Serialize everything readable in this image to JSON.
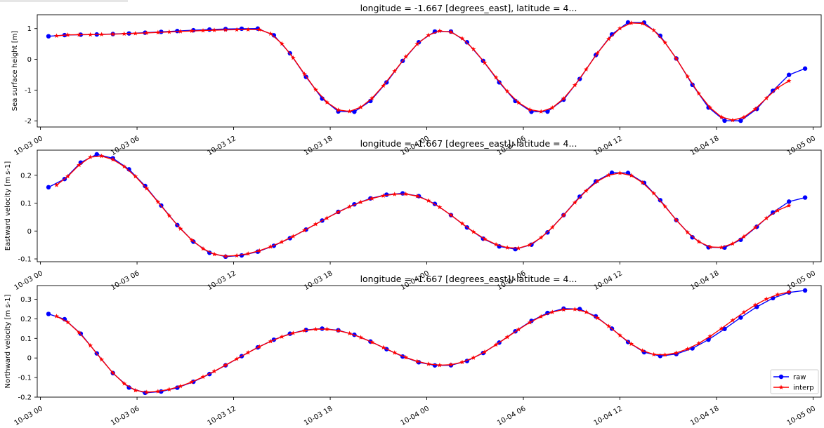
{
  "colors": {
    "raw": "#0000ff",
    "interp": "#ff0000"
  },
  "legend": {
    "position": "bottom-right",
    "raw_label": "raw",
    "interp_label": "interp"
  },
  "chart_data": [
    {
      "type": "line",
      "title": "longitude = -1.667 [degrees_east], latitude = 4...",
      "ylabel": "Sea surface height [m]",
      "xlim_hours": [
        -0.2,
        48.5
      ],
      "ylim": [
        -2.2,
        1.45
      ],
      "yticks": [
        -2,
        -1,
        0,
        1
      ],
      "xtick_labels": [
        "10-03 00",
        "10-03 06",
        "10-03 12",
        "10-03 18",
        "10-04 00",
        "10-04 06",
        "10-04 12",
        "10-04 18",
        "10-05 00"
      ],
      "series": [
        {
          "name": "raw",
          "marker": "circle",
          "amp": [
            [
              0.5,
              0.75
            ],
            [
              2,
              0.8
            ],
            [
              13.5,
              1.0
            ],
            [
              19,
              -1.75
            ],
            [
              25,
              0.95
            ],
            [
              31,
              -1.75
            ],
            [
              37,
              1.25
            ],
            [
              43,
              -2.05
            ],
            [
              47.5,
              -0.3
            ]
          ]
        },
        {
          "name": "interp",
          "marker": "star",
          "amp": [
            [
              0.5,
              0.75
            ],
            [
              2,
              0.8
            ],
            [
              13.5,
              0.97
            ],
            [
              19,
              -1.7
            ],
            [
              25,
              0.93
            ],
            [
              31,
              -1.7
            ],
            [
              37,
              1.2
            ],
            [
              43,
              -1.98
            ],
            [
              47,
              -0.65
            ]
          ]
        }
      ]
    },
    {
      "type": "line",
      "title": "longitude = -1.667 [degrees_east], latitude = 4...",
      "ylabel": "Eastward velocity [m s-1]",
      "xlim_hours": [
        -0.2,
        48.5
      ],
      "ylim": [
        -0.11,
        0.29
      ],
      "yticks": [
        -0.1,
        0.0,
        0.1,
        0.2
      ],
      "xtick_labels": [
        "10-03 00",
        "10-03 06",
        "10-03 12",
        "10-03 18",
        "10-04 00",
        "10-04 06",
        "10-04 12",
        "10-04 18",
        "10-05 00"
      ],
      "series": [
        {
          "name": "raw",
          "marker": "circle",
          "amp": [
            [
              0.5,
              0.157
            ],
            [
              3.5,
              0.275
            ],
            [
              11.5,
              -0.092
            ],
            [
              22.5,
              0.135
            ],
            [
              29.5,
              -0.065
            ],
            [
              36,
              0.213
            ],
            [
              42,
              -0.063
            ],
            [
              47.5,
              0.12
            ]
          ]
        },
        {
          "name": "interp",
          "marker": "star",
          "amp": [
            [
              0.5,
              0.157
            ],
            [
              3.5,
              0.27
            ],
            [
              11.5,
              -0.09
            ],
            [
              22.5,
              0.133
            ],
            [
              29.5,
              -0.062
            ],
            [
              36,
              0.208
            ],
            [
              42,
              -0.06
            ],
            [
              47,
              0.095
            ]
          ]
        }
      ]
    },
    {
      "type": "line",
      "title": "longitude = -1.667 [degrees_east], latitude = 4...",
      "ylabel": "Northward velocity [m s-1]",
      "xlim_hours": [
        -0.2,
        48.5
      ],
      "ylim": [
        -0.2,
        0.37
      ],
      "yticks": [
        -0.2,
        -0.1,
        0.0,
        0.1,
        0.2,
        0.3
      ],
      "xtick_labels": [
        "10-03 00",
        "10-03 06",
        "10-03 12",
        "10-03 18",
        "10-04 00",
        "10-04 06",
        "10-04 12",
        "10-04 18",
        "10-05 00"
      ],
      "series": [
        {
          "name": "raw",
          "marker": "circle",
          "amp": [
            [
              0.5,
              0.225
            ],
            [
              6.5,
              -0.178
            ],
            [
              17.5,
              0.15
            ],
            [
              25,
              -0.04
            ],
            [
              33,
              0.255
            ],
            [
              38.5,
              0.01
            ],
            [
              47.5,
              0.345
            ]
          ]
        },
        {
          "name": "interp",
          "marker": "star",
          "amp": [
            [
              0.5,
              0.22
            ],
            [
              6.5,
              -0.175
            ],
            [
              17.5,
              0.148
            ],
            [
              25,
              -0.037
            ],
            [
              33,
              0.25
            ],
            [
              38.5,
              0.015
            ],
            [
              47,
              0.34
            ]
          ]
        }
      ]
    }
  ]
}
